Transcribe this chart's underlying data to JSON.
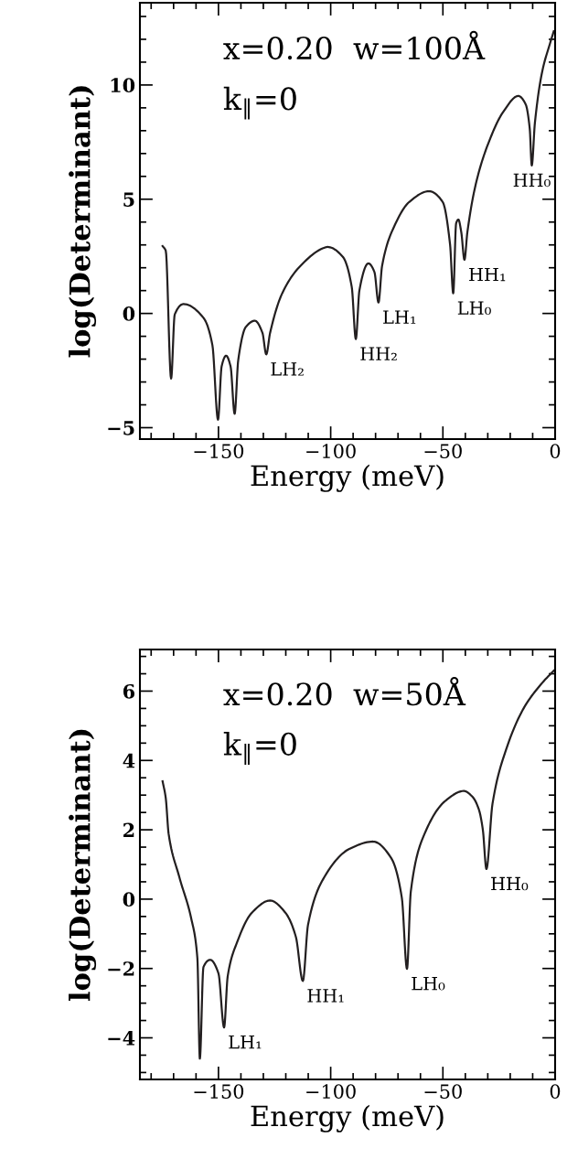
{
  "chart_data": [
    {
      "type": "line",
      "xlabel": "Energy (meV)",
      "ylabel": "log(Determinant)",
      "xlim": [
        -185,
        0
      ],
      "ylim": [
        -5.5,
        13.6
      ],
      "xticks": [
        {
          "value": -150,
          "label": "−150"
        },
        {
          "value": -100,
          "label": "−100"
        },
        {
          "value": -50,
          "label": "−50"
        },
        0
      ],
      "yticks": [
        {
          "value": -5,
          "label": "−5"
        },
        0,
        5,
        10
      ],
      "grid": false,
      "legend": false,
      "marker": "none",
      "line_style": "solid",
      "series": [
        {
          "color": "#231f20",
          "x": [
            -174.9,
            -173.5,
            -171.1,
            -169.5,
            -165.5,
            -156.7,
            -152.7,
            -150.2,
            -148.6,
            -146.6,
            -144.6,
            -142.8,
            -141.2,
            -137.8,
            -133.8,
            -130.4,
            -128.7,
            -127.0,
            -121.6,
            -113.5,
            -102.7,
            -101.4,
            -94.6,
            -90.6,
            -88.8,
            -87.2,
            -83.2,
            -80.5,
            -78.7,
            -77.1,
            -71.7,
            -65.0,
            -56.2,
            -50.1,
            -46.8,
            -45.4,
            -44.1,
            -43.1,
            -41.8,
            -40.4,
            -39.1,
            -35.3,
            -29.9,
            -23.2,
            -16.4,
            -13.1,
            -11.3,
            -10.4,
            -9.0,
            -5.7,
            -2.3,
            -0.6
          ],
          "values": [
            2.95,
            2.75,
            -2.85,
            -0.05,
            0.41,
            -0.19,
            -1.39,
            -4.65,
            -2.32,
            -1.85,
            -2.32,
            -4.39,
            -2.05,
            -0.59,
            -0.32,
            -0.85,
            -1.79,
            -0.85,
            0.88,
            2.08,
            2.88,
            2.91,
            2.48,
            1.15,
            -1.12,
            1.01,
            2.19,
            1.81,
            0.48,
            2.08,
            3.81,
            4.88,
            5.35,
            4.88,
            3.01,
            0.88,
            3.95,
            4.11,
            3.55,
            2.35,
            3.55,
            5.68,
            7.41,
            8.81,
            9.52,
            9.15,
            8.08,
            6.48,
            8.35,
            10.61,
            11.81,
            12.35
          ]
        }
      ],
      "annotations": [
        "x=0.20  w=100Å",
        "k$_{∥}$=0",
        {
          "text": "LH₂",
          "x": -128.7,
          "y": -1.79
        },
        {
          "text": "HH₂",
          "x": -88.8,
          "y": -1.12
        },
        {
          "text": "LH₁",
          "x": -78.7,
          "y": 0.48
        },
        {
          "text": "LH₀",
          "x": -45.4,
          "y": 0.88
        },
        {
          "text": "HH₁",
          "x": -40.4,
          "y": 2.35
        },
        {
          "text": "HH₀",
          "x": -10.4,
          "y": 6.48
        }
      ]
    },
    {
      "type": "line",
      "xlabel": "Energy (meV)",
      "ylabel": "log(Determinant)",
      "xlim": [
        -185,
        0
      ],
      "ylim": [
        -5.2,
        7.2
      ],
      "xticks": [
        {
          "value": -150,
          "label": "−150"
        },
        {
          "value": -100,
          "label": "−100"
        },
        {
          "value": -50,
          "label": "−50"
        },
        0
      ],
      "yticks": [
        {
          "value": -4,
          "label": "−4"
        },
        {
          "value": -2,
          "label": "−2"
        },
        0,
        2,
        4,
        6
      ],
      "grid": false,
      "legend": false,
      "marker": "none",
      "line_style": "solid",
      "series": [
        {
          "color": "#231f20",
          "x": [
            -174.9,
            -173.5,
            -172.2,
            -167.5,
            -162.1,
            -159.4,
            -158.3,
            -156.7,
            -153.7,
            -150.0,
            -147.5,
            -145.9,
            -141.8,
            -135.1,
            -127.0,
            -120.2,
            -115.5,
            -112.4,
            -110.1,
            -102.7,
            -91.9,
            -81.1,
            -73.0,
            -68.3,
            -66.0,
            -64.3,
            -58.2,
            -48.8,
            -40.7,
            -36.8,
            -33.9,
            -32.2,
            -30.6,
            -27.9,
            -21.8,
            -13.7,
            -5.7,
            -0.6
          ],
          "values": [
            3.4,
            2.92,
            1.88,
            0.65,
            -0.57,
            -1.7,
            -4.6,
            -1.96,
            -1.75,
            -2.14,
            -3.7,
            -2.23,
            -1.26,
            -0.39,
            -0.04,
            -0.39,
            -1.09,
            -2.36,
            -0.74,
            0.65,
            1.44,
            1.66,
            1.18,
            0.04,
            -2.01,
            0.22,
            1.88,
            2.84,
            3.12,
            2.95,
            2.57,
            2.0,
            0.87,
            2.75,
            4.32,
            5.54,
            6.24,
            6.59
          ]
        }
      ],
      "annotations": [
        "x=0.20  w=50Å",
        "k$_{∥}$=0",
        {
          "text": "LH₁",
          "x": -147.5,
          "y": -3.7
        },
        {
          "text": "HH₁",
          "x": -112.4,
          "y": -2.36
        },
        {
          "text": "LH₀",
          "x": -66.0,
          "y": -2.01
        },
        {
          "text": "HH₀",
          "x": -30.6,
          "y": 0.87
        }
      ]
    }
  ]
}
